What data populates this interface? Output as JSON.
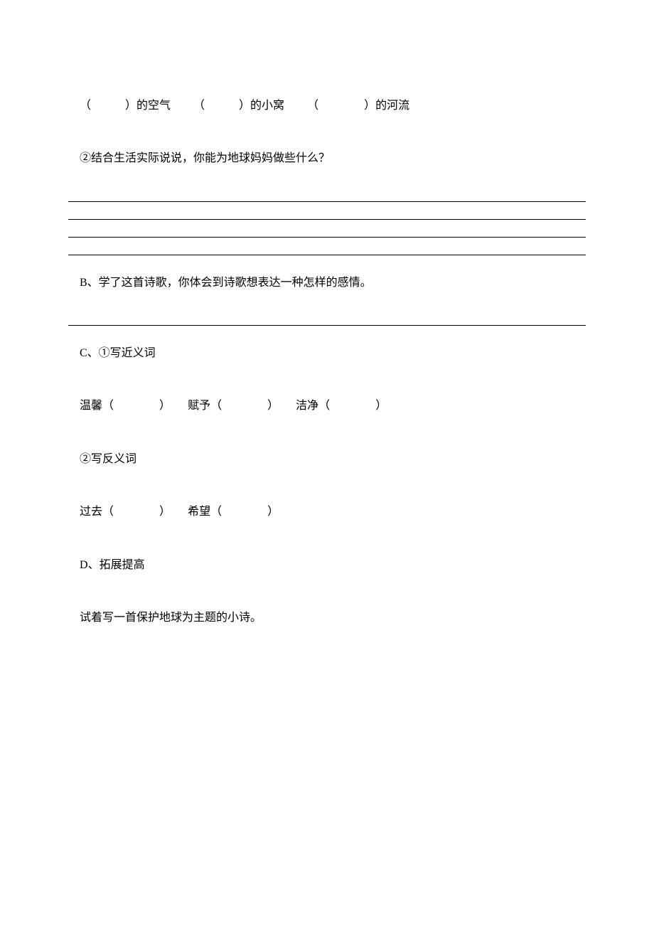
{
  "text_color": "#000000",
  "background_color": "#ffffff",
  "font_size_pt": 12,
  "font_family": "SimSun",
  "fill_in": {
    "line1_segments": [
      "（　　　）的空气",
      "（　　　）的小窝",
      "（　　　　）的河流"
    ],
    "q2": "②结合生活实际说说，你能为地球妈妈做些什么？"
  },
  "section_b": {
    "label": "B",
    "title": "、学了这首诗歌，你体会到诗歌想表达一种怎样的感情。"
  },
  "section_c": {
    "label": "C",
    "title": "、①写近义词",
    "synonyms_row": [
      {
        "word": "温馨",
        "open": "（",
        "close": "）"
      },
      {
        "word": "赋予",
        "open": "（",
        "close": "）"
      },
      {
        "word": "洁净",
        "open": "（",
        "close": "）"
      }
    ],
    "antonym_title": "②写反义词",
    "antonyms_row": [
      {
        "word": "过去",
        "open": "（",
        "close": "）"
      },
      {
        "word": "希望",
        "open": "（",
        "close": "）"
      }
    ]
  },
  "section_d": {
    "label": "D",
    "title": "、拓展提高",
    "prompt": "试着写一首保护地球为主题的小诗。"
  }
}
